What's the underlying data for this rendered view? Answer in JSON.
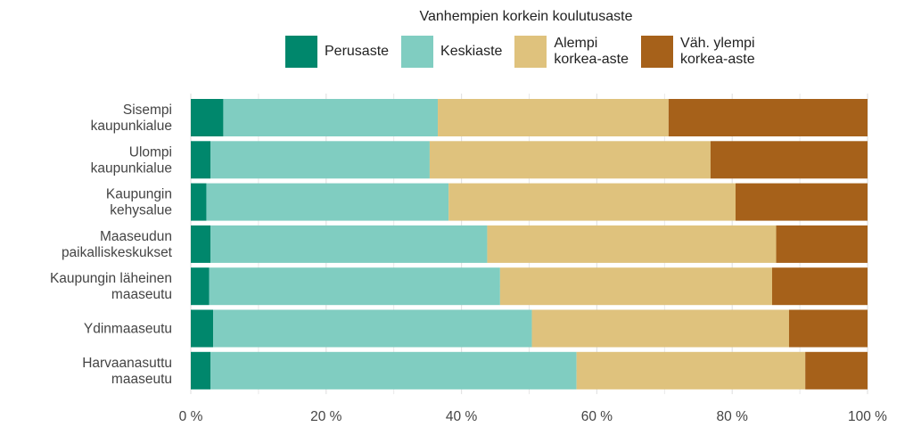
{
  "chart_data": {
    "type": "bar",
    "orientation": "horizontal",
    "stacked": true,
    "legend_title": "Vanhempien korkein koulutusaste",
    "legend_position": "top",
    "categories": [
      "Sisempi\nkaupunkialue",
      "Ulompi\nkaupunkialue",
      "Kaupungin\nkehysalue",
      "Maaseudun\npaikalliskeskukset",
      "Kaupungin läheinen\nmaaseutu",
      "Ydinmaaseutu",
      "Harvaanasuttu\nmaaseutu"
    ],
    "series": [
      {
        "name": "Perusaste",
        "color": "#00876c",
        "values": [
          4.8,
          2.9,
          2.3,
          2.9,
          2.7,
          3.3,
          2.9
        ]
      },
      {
        "name": "Keskiaste",
        "color": "#80cdc1",
        "values": [
          31.7,
          32.4,
          35.8,
          40.9,
          43.0,
          47.1,
          54.1
        ]
      },
      {
        "name": "Alempi\nkorkea-aste",
        "color": "#dfc27d",
        "values": [
          34.1,
          41.5,
          42.4,
          42.7,
          40.2,
          38.0,
          33.8
        ]
      },
      {
        "name": "Väh. ylempi\nkorkea-aste",
        "color": "#a6611a",
        "values": [
          29.4,
          23.2,
          19.5,
          13.5,
          14.1,
          11.6,
          9.2
        ]
      }
    ],
    "x_ticks": [
      "0 %",
      "20 %",
      "40 %",
      "60 %",
      "80 %",
      "100 %"
    ],
    "xlim": [
      0,
      100
    ],
    "grid": true
  }
}
